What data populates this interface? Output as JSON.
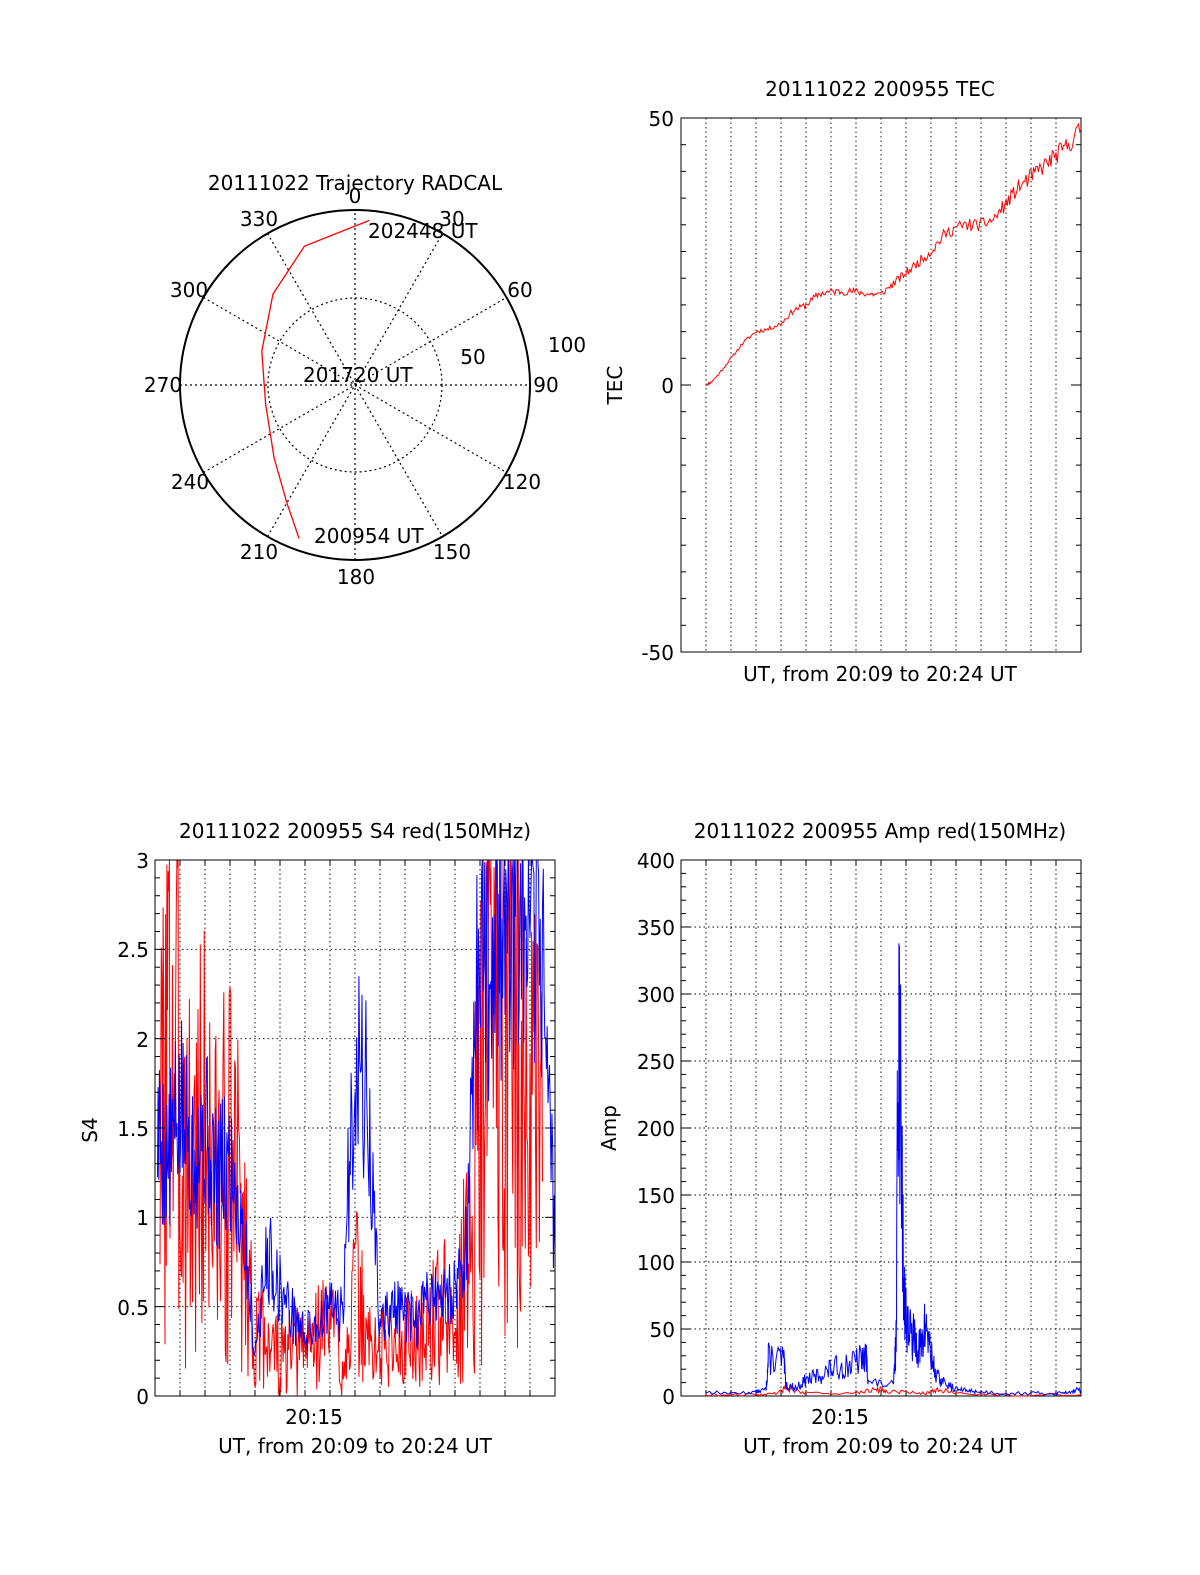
{
  "chart_data": [
    {
      "id": "trajectory",
      "type": "polar",
      "title": "20111022 Trajectory RADCAL",
      "angle_labels": [
        "0",
        "30",
        "60",
        "90",
        "120",
        "150",
        "180",
        "210",
        "240",
        "270",
        "300",
        "330"
      ],
      "radius_labels": [
        "50",
        "100"
      ],
      "start_label": "200954 UT",
      "mid_label": "201720 UT",
      "end_label": "202448 UT",
      "series": [
        {
          "color": "#ff0000",
          "points": [
            {
              "az": 200,
              "zen": 84
            },
            {
              "az": 210,
              "zen": 70
            },
            {
              "az": 228,
              "zen": 56
            },
            {
              "az": 258,
              "zen": 47
            },
            {
              "az": 290,
              "zen": 51
            },
            {
              "az": 318,
              "zen": 63
            },
            {
              "az": 340,
              "zen": 76
            },
            {
              "az": 5,
              "zen": 85
            }
          ]
        }
      ]
    },
    {
      "id": "tec",
      "type": "line",
      "title": "20111022 200955 TEC",
      "xlabel": "UT, from 20:09 to 20:24 UT",
      "ylabel": "TEC",
      "ylim": [
        -50,
        50
      ],
      "yticks": [
        "-50",
        "0",
        "50"
      ],
      "xlim": [
        0,
        16
      ],
      "grid": "vertical dotted, every minute",
      "series": [
        {
          "color": "#ff0000",
          "x": [
            1,
            1.2,
            1.5,
            2,
            2.5,
            3,
            3.5,
            4,
            4.5,
            5,
            5.5,
            6,
            6.5,
            7,
            7.5,
            8,
            8.5,
            9,
            9.5,
            10,
            10.5,
            11,
            11.5,
            12,
            12.5,
            13,
            13.5,
            14,
            14.5,
            15,
            15.5,
            16
          ],
          "y": [
            0,
            0.5,
            2,
            5,
            8,
            10,
            10.5,
            11.5,
            14,
            15,
            17,
            17.5,
            17.5,
            17.5,
            17,
            17,
            19,
            21,
            23,
            25,
            28,
            29.5,
            30,
            30,
            31,
            34,
            37,
            39,
            41,
            43,
            45,
            48
          ]
        }
      ]
    },
    {
      "id": "s4",
      "type": "line",
      "title": "20111022 200955 S4 red(150MHz)",
      "xlabel": "UT, from 20:09 to 20:24 UT",
      "ylabel": "S4",
      "ylim": [
        0,
        3
      ],
      "yticks": [
        "0",
        "0.5",
        "1",
        "1.5",
        "2",
        "2.5",
        "3"
      ],
      "xtick_label": "20:15",
      "xlim": [
        0,
        16
      ],
      "series": [
        {
          "color": "#ff0000",
          "x": [
            0.2,
            0.6,
            1,
            1.5,
            2,
            2.5,
            3,
            3.5,
            4,
            4.5,
            5,
            5.5,
            6,
            6.5,
            7,
            7.5,
            8,
            8.5,
            9,
            9.5,
            10,
            10.5,
            11,
            11.5,
            12,
            12.5,
            13,
            13.5,
            14,
            14.5,
            15,
            15.5
          ],
          "y": [
            1.4,
            2.2,
            1.6,
            1.2,
            1.5,
            1.1,
            1.3,
            1.0,
            0.3,
            0.35,
            0.2,
            0.22,
            0.28,
            0.35,
            0.45,
            0.2,
            0.6,
            0.3,
            0.25,
            0.3,
            0.35,
            0.3,
            0.4,
            0.5,
            0.3,
            0.8,
            1.5,
            2.5,
            2.8,
            2.2,
            1.6,
            1.2
          ]
        },
        {
          "color": "#0000ff",
          "x": [
            0.1,
            0.5,
            1,
            1.5,
            2,
            2.5,
            3,
            3.5,
            4,
            4.5,
            5,
            5.5,
            6,
            6.5,
            7,
            7.5,
            8,
            8.5,
            9,
            9.5,
            10,
            10.5,
            11,
            11.5,
            12,
            12.5,
            13,
            13.5,
            14,
            14.5,
            15,
            15.5,
            16
          ],
          "y": [
            1.5,
            1.3,
            1.6,
            1.4,
            1.5,
            1.2,
            1.3,
            1.0,
            0.25,
            0.8,
            0.6,
            0.45,
            0.35,
            0.4,
            0.5,
            0.45,
            2.0,
            1.6,
            0.4,
            0.5,
            0.45,
            0.4,
            0.6,
            0.55,
            0.6,
            0.9,
            2.6,
            2.5,
            2.8,
            2.6,
            2.4,
            2.6,
            0.8
          ]
        }
      ]
    },
    {
      "id": "amp",
      "type": "line",
      "title": "20111022 200955 Amp red(150MHz)",
      "xlabel": "UT, from 20:09 to 20:24 UT",
      "ylabel": "Amp",
      "ylim": [
        0,
        400
      ],
      "yticks": [
        "0",
        "50",
        "100",
        "150",
        "200",
        "250",
        "300",
        "350",
        "400"
      ],
      "xtick_label": "20:15",
      "xlim": [
        0,
        16
      ],
      "grid": "dotted both axes",
      "series": [
        {
          "color": "#ff0000",
          "x": [
            1,
            3,
            3.8,
            4.2,
            5,
            7,
            7.8,
            8.2,
            9,
            9.8,
            10.3,
            11,
            13,
            16
          ],
          "y": [
            1,
            1,
            2,
            6,
            2,
            2,
            5,
            4,
            3,
            2,
            5,
            2,
            1,
            1
          ]
        },
        {
          "color": "#0000ff",
          "x": [
            1,
            2,
            3,
            3.4,
            3.5,
            4.1,
            4.2,
            4.6,
            5,
            5.5,
            6,
            6.5,
            7,
            7.4,
            7.5,
            8.5,
            8.6,
            8.7,
            8.8,
            8.9,
            9,
            9.2,
            9.4,
            9.6,
            9.8,
            10,
            10.2,
            10.5,
            11,
            11.5,
            12,
            13,
            14,
            15,
            15.5,
            16
          ],
          "y": [
            3,
            2,
            3,
            5,
            28,
            28,
            8,
            6,
            12,
            15,
            20,
            22,
            25,
            30,
            10,
            8,
            40,
            300,
            200,
            90,
            60,
            45,
            40,
            35,
            55,
            30,
            15,
            10,
            5,
            4,
            3,
            2,
            2,
            2,
            3,
            5
          ]
        }
      ]
    }
  ]
}
